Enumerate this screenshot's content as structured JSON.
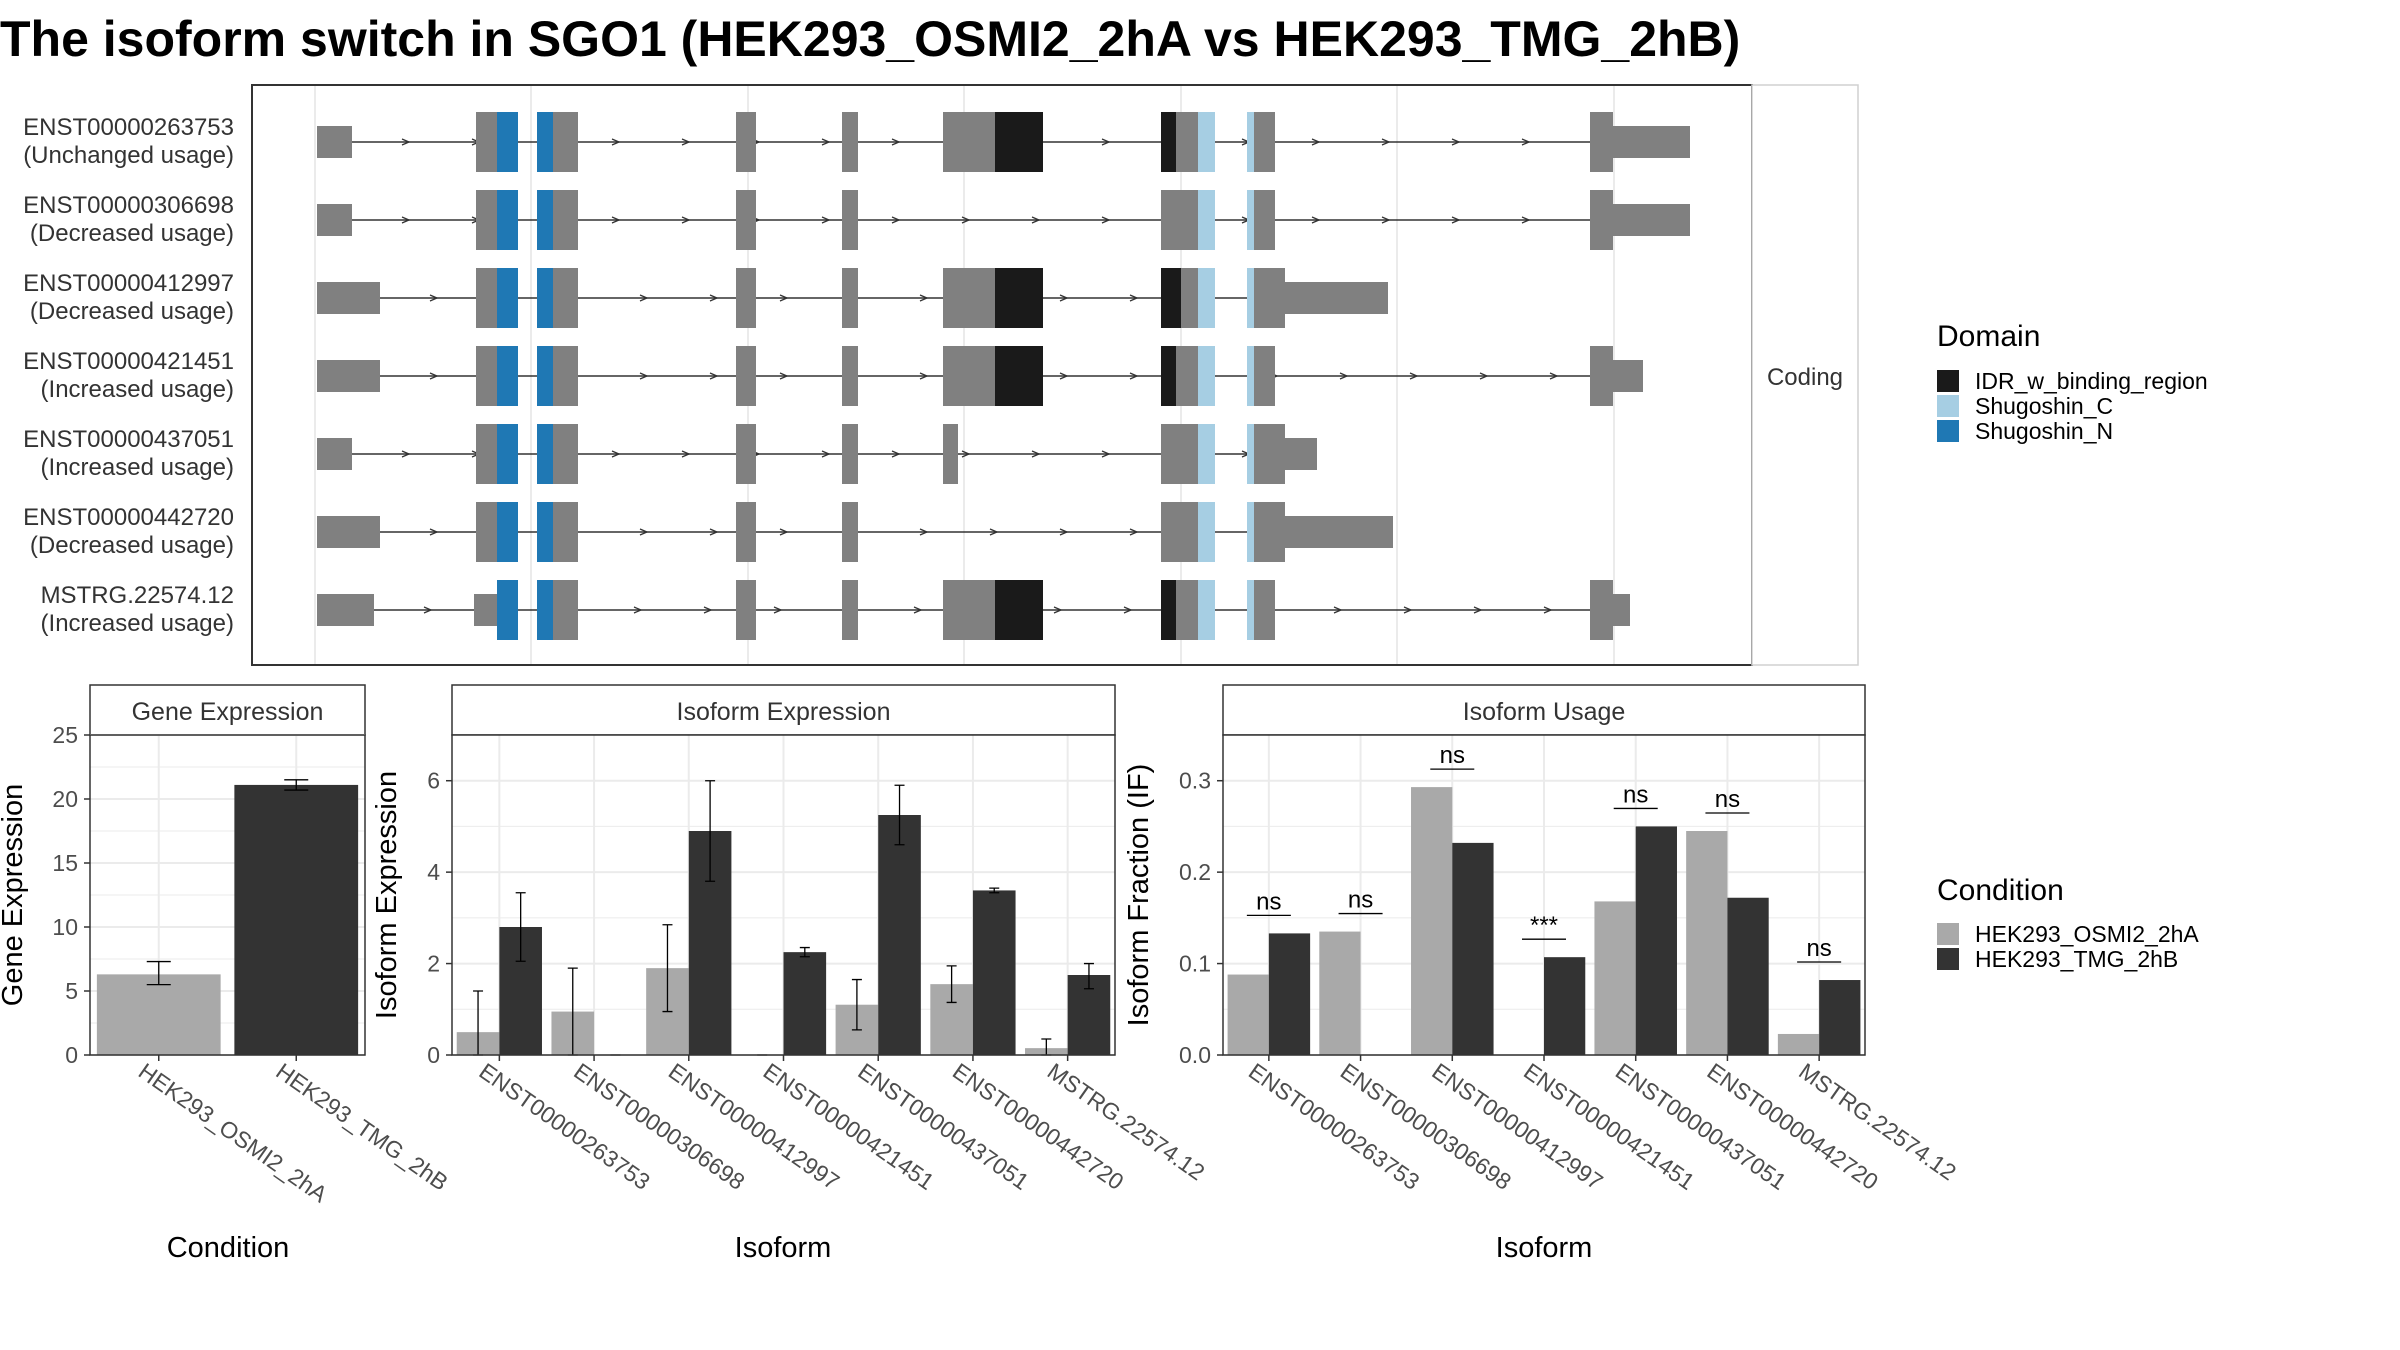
{
  "title": "The isoform switch in SGO1 (HEK293_OSMI2_2hA vs HEK293_TMG_2hB)",
  "colors": {
    "exon": "#808080",
    "IDR_w_binding_region": "#1a1a1a",
    "Shugoshin_C": "#a6cee3",
    "Shugoshin_N": "#1f78b4",
    "cond_a": "#a9a9a9",
    "cond_b": "#333333"
  },
  "structure": {
    "strip_label": "Coding",
    "domain_legend_title": "Domain",
    "domains": [
      "IDR_w_binding_region",
      "Shugoshin_C",
      "Shugoshin_N"
    ],
    "isoforms": [
      {
        "id": "ENST00000263753",
        "usage": "(Unchanged usage)"
      },
      {
        "id": "ENST00000306698",
        "usage": "(Decreased usage)"
      },
      {
        "id": "ENST00000412997",
        "usage": "(Decreased usage)"
      },
      {
        "id": "ENST00000421451",
        "usage": "(Increased usage)"
      },
      {
        "id": "ENST00000437051",
        "usage": "(Increased usage)"
      },
      {
        "id": "ENST00000442720",
        "usage": "(Decreased usage)"
      },
      {
        "id": "MSTRG.22574.12",
        "usage": "(Increased usage)"
      }
    ]
  },
  "condition_legend": {
    "title": "Condition",
    "items": [
      "HEK293_OSMI2_2hA",
      "HEK293_TMG_2hB"
    ]
  },
  "chart_data": [
    {
      "type": "bar",
      "title": "Gene Expression",
      "xlabel": "Condition",
      "ylabel": "Gene Expression",
      "ylim": [
        0,
        25
      ],
      "yticks": [
        0,
        5,
        10,
        15,
        20,
        25
      ],
      "categories": [
        "HEK293_OSMI2_2hA",
        "HEK293_TMG_2hB"
      ],
      "values": [
        6.3,
        21.1
      ],
      "errors": [
        [
          5.5,
          7.3
        ],
        [
          20.7,
          21.5
        ]
      ]
    },
    {
      "type": "bar",
      "title": "Isoform Expression",
      "xlabel": "Isoform",
      "ylabel": "Isoform Expression",
      "ylim": [
        0,
        7
      ],
      "yticks": [
        0,
        2,
        4,
        6
      ],
      "categories": [
        "ENST00000263753",
        "ENST00000306698",
        "ENST00000412997",
        "ENST00000421451",
        "ENST00000437051",
        "ENST00000442720",
        "MSTRG.22574.12"
      ],
      "series": [
        {
          "name": "HEK293_OSMI2_2hA",
          "values": [
            0.5,
            0.95,
            1.9,
            0.0,
            1.1,
            1.55,
            0.15
          ],
          "errors": [
            [
              0.0,
              1.4
            ],
            [
              0.0,
              1.9
            ],
            [
              0.95,
              2.85
            ],
            [
              0.0,
              0.0
            ],
            [
              0.55,
              1.65
            ],
            [
              1.15,
              1.95
            ],
            [
              0.0,
              0.35
            ]
          ]
        },
        {
          "name": "HEK293_TMG_2hB",
          "values": [
            2.8,
            0.0,
            4.9,
            2.25,
            5.25,
            3.6,
            1.75
          ],
          "errors": [
            [
              2.05,
              3.55
            ],
            [
              0.0,
              0.0
            ],
            [
              3.8,
              6.0
            ],
            [
              2.15,
              2.35
            ],
            [
              4.6,
              5.9
            ],
            [
              3.55,
              3.65
            ],
            [
              1.45,
              2.0
            ]
          ]
        }
      ]
    },
    {
      "type": "bar",
      "title": "Isoform Usage",
      "xlabel": "Isoform",
      "ylabel": "Isoform Fraction (IF)",
      "ylim": [
        0,
        0.35
      ],
      "yticks": [
        0.0,
        0.1,
        0.2,
        0.3
      ],
      "categories": [
        "ENST00000263753",
        "ENST00000306698",
        "ENST00000412997",
        "ENST00000421451",
        "ENST00000437051",
        "ENST00000442720",
        "MSTRG.22574.12"
      ],
      "series": [
        {
          "name": "HEK293_OSMI2_2hA",
          "values": [
            0.088,
            0.135,
            0.293,
            0.0,
            0.168,
            0.245,
            0.023
          ]
        },
        {
          "name": "HEK293_TMG_2hB",
          "values": [
            0.133,
            0.0,
            0.232,
            0.107,
            0.25,
            0.172,
            0.082
          ]
        }
      ],
      "annotations": [
        "ns",
        "ns",
        "ns",
        "***",
        "ns",
        "ns",
        "ns"
      ]
    }
  ]
}
